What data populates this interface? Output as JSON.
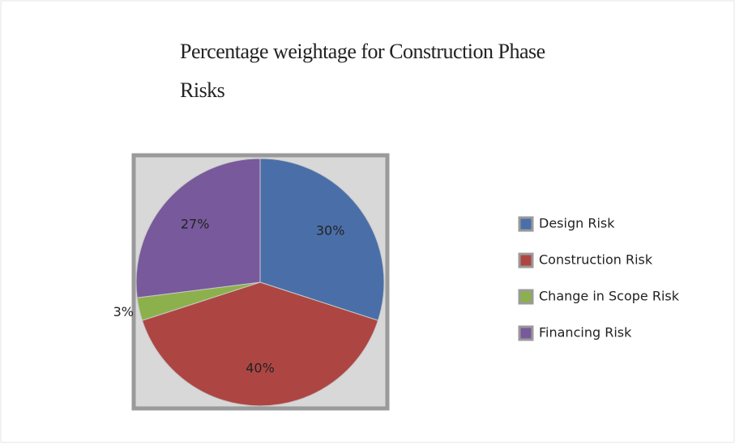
{
  "chart_data": {
    "type": "pie",
    "title": "Percentage weightage for Construction Phase Risks",
    "categories": [
      "Design Risk",
      "Construction Risk",
      "Change in Scope Risk",
      "Financing Risk"
    ],
    "values": [
      30,
      40,
      3,
      27
    ],
    "value_labels": [
      "30%",
      "40%",
      "3%",
      "27%"
    ],
    "colors": [
      "#4a6fa8",
      "#ad4643",
      "#8cb14c",
      "#78599b"
    ],
    "legend": "right"
  }
}
